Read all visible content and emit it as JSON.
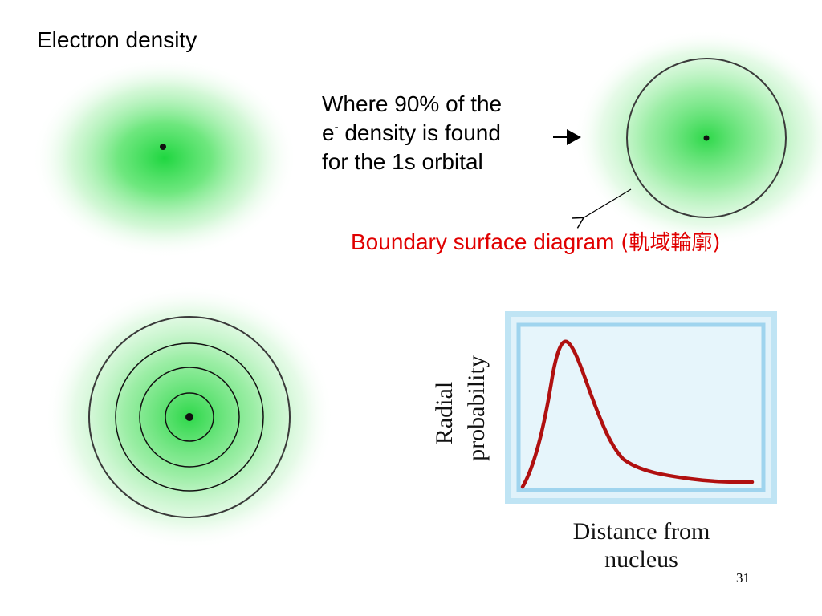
{
  "slide": {
    "title": "Electron density",
    "caption": {
      "line1": "Where 90% of the",
      "line2_prefix": "e",
      "line2_sup": "-",
      "line2_rest": " density is found",
      "line3": "for the 1s orbital"
    },
    "boundary_label": "Boundary surface diagram",
    "boundary_label_cjk": "(軌域輪廓)",
    "page_number": "31"
  },
  "graph": {
    "ylabel_line1": "Radial",
    "ylabel_line2": "probability",
    "xlabel_line1": "Distance from",
    "xlabel_line2": "nucleus"
  },
  "colors": {
    "green_center": "#22dd44",
    "boundary_label": "#e00000",
    "curve": "#b01010",
    "frame_blue": "#9fd4ee",
    "frame_fill": "#e6f5fb",
    "circle_stroke": "#3a3a3a"
  }
}
